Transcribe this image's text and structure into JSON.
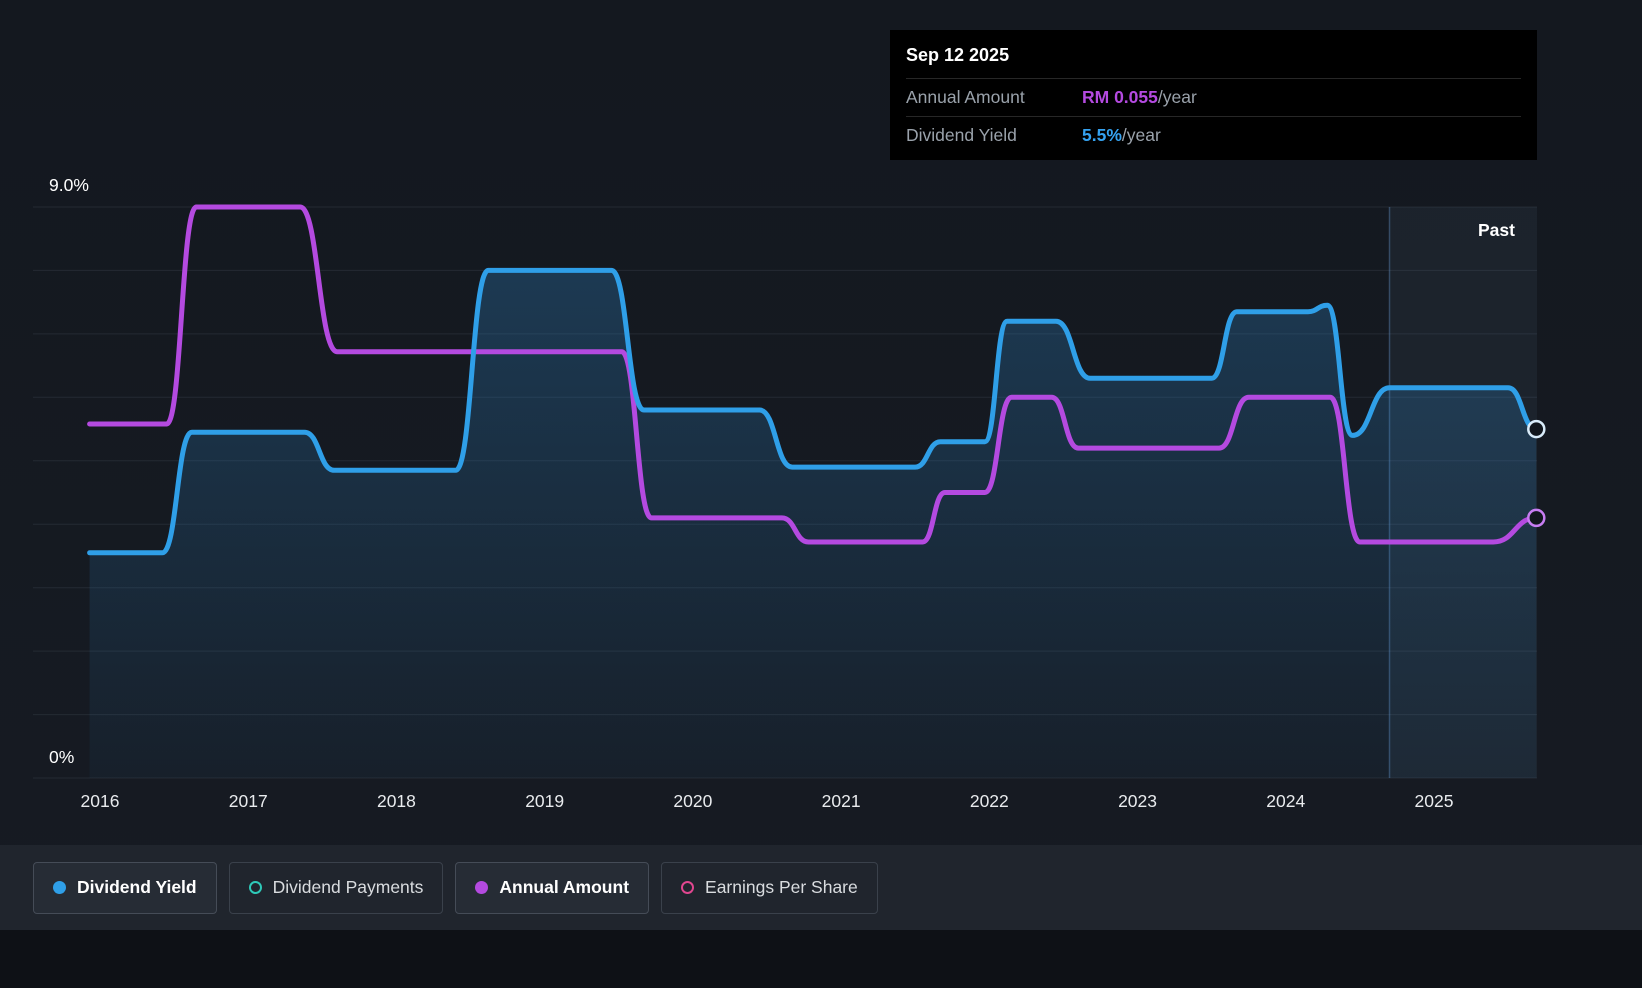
{
  "tooltip": {
    "date": "Sep 12 2025",
    "rows": [
      {
        "label": "Annual Amount",
        "value": "RM 0.055",
        "suffix": "/year",
        "value_color": "#b44ae0"
      },
      {
        "label": "Dividend Yield",
        "value": "5.5%",
        "suffix": "/year",
        "value_color": "#35a2f0"
      }
    ]
  },
  "axis": {
    "y_top_label": "9.0%",
    "y_bottom_label": "0%",
    "x_tick_labels": [
      "2016",
      "2017",
      "2018",
      "2019",
      "2020",
      "2021",
      "2022",
      "2023",
      "2024",
      "2025"
    ]
  },
  "past_region": {
    "label": "Past"
  },
  "legend": [
    {
      "label": "Dividend Yield",
      "style": "filled",
      "active": true,
      "color": "#2f9fe8"
    },
    {
      "label": "Dividend Payments",
      "style": "outline",
      "active": false,
      "color": "#2ec9b8"
    },
    {
      "label": "Annual Amount",
      "style": "filled",
      "active": true,
      "color": "#b44ae0"
    },
    {
      "label": "Earnings Per Share",
      "style": "outline",
      "active": false,
      "color": "#e0468f"
    }
  ],
  "chart_data": {
    "type": "line",
    "title": "Dividend yield and annual dividend amount history",
    "y_unit": "%",
    "ylim": [
      0,
      9
    ],
    "gridline_step": 1,
    "grid": true,
    "x_domain": [
      2015.9,
      2025.7
    ],
    "past_divider_year": 2024.7,
    "current": {
      "annual_amount": "RM 0.055/year",
      "dividend_yield": "5.5%/year",
      "as_of": "Sep 12 2025"
    },
    "series": [
      {
        "name": "Dividend Yield",
        "color": "#2f9fe8",
        "marker_color": "#d9ecfa",
        "area": true,
        "points": [
          [
            2015.93,
            3.55
          ],
          [
            2016.42,
            3.55
          ],
          [
            2016.62,
            5.45
          ],
          [
            2017.38,
            5.45
          ],
          [
            2017.58,
            4.85
          ],
          [
            2018.4,
            4.85
          ],
          [
            2018.62,
            8.0
          ],
          [
            2019.45,
            8.0
          ],
          [
            2019.67,
            5.8
          ],
          [
            2020.45,
            5.8
          ],
          [
            2020.67,
            4.9
          ],
          [
            2021.5,
            4.9
          ],
          [
            2021.67,
            5.3
          ],
          [
            2021.97,
            5.3
          ],
          [
            2022.12,
            7.2
          ],
          [
            2022.45,
            7.2
          ],
          [
            2022.68,
            6.3
          ],
          [
            2023.5,
            6.3
          ],
          [
            2023.67,
            7.35
          ],
          [
            2024.15,
            7.35
          ],
          [
            2024.28,
            7.45
          ],
          [
            2024.45,
            5.4
          ],
          [
            2024.7,
            6.15
          ],
          [
            2025.5,
            6.15
          ],
          [
            2025.69,
            5.5
          ]
        ]
      },
      {
        "name": "Annual Amount",
        "color": "#b44ae0",
        "marker_color": "#c77df2",
        "area": false,
        "points": [
          [
            2015.93,
            5.58
          ],
          [
            2016.45,
            5.58
          ],
          [
            2016.65,
            9.0
          ],
          [
            2017.35,
            9.0
          ],
          [
            2017.6,
            6.72
          ],
          [
            2019.52,
            6.72
          ],
          [
            2019.72,
            4.1
          ],
          [
            2020.6,
            4.1
          ],
          [
            2020.78,
            3.72
          ],
          [
            2021.55,
            3.72
          ],
          [
            2021.7,
            4.5
          ],
          [
            2021.97,
            4.5
          ],
          [
            2022.15,
            6.0
          ],
          [
            2022.42,
            6.0
          ],
          [
            2022.6,
            5.2
          ],
          [
            2023.55,
            5.2
          ],
          [
            2023.75,
            6.0
          ],
          [
            2024.3,
            6.0
          ],
          [
            2024.5,
            3.72
          ],
          [
            2025.4,
            3.72
          ],
          [
            2025.69,
            4.1
          ]
        ]
      }
    ]
  }
}
